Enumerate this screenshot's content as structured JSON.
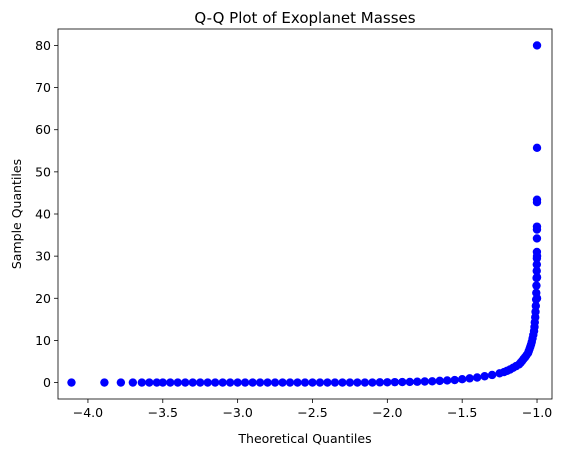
{
  "chart_data": {
    "type": "scatter",
    "title": "Q-Q Plot of Exoplanet Masses",
    "xlabel": "Theoretical Quantiles",
    "ylabel": "Sample Quantiles",
    "xlim": [
      -4.2,
      -0.9
    ],
    "ylim": [
      -3.9,
      83.9
    ],
    "x_ticks": [
      -4.0,
      -3.5,
      -3.0,
      -2.5,
      -2.0,
      -1.5,
      -1.0
    ],
    "x_tick_labels": [
      "−4.0",
      "−3.5",
      "−3.0",
      "−2.5",
      "−2.0",
      "−1.5",
      "−1.0"
    ],
    "y_ticks": [
      0,
      10,
      20,
      30,
      40,
      50,
      60,
      70,
      80
    ],
    "y_tick_labels": [
      "0",
      "10",
      "20",
      "30",
      "40",
      "50",
      "60",
      "70",
      "80"
    ],
    "grid": false,
    "legend": "none",
    "marker_color": "#0000ff",
    "series": [
      {
        "x": [
          -4.11,
          -3.89,
          -3.78,
          -3.7,
          -3.64,
          -3.59,
          -3.54,
          -3.5,
          -3.45,
          -3.4,
          -3.35,
          -3.3,
          -3.25,
          -3.2,
          -3.15,
          -3.1,
          -3.05,
          -3.0,
          -2.95,
          -2.9,
          -2.85,
          -2.8,
          -2.75,
          -2.7,
          -2.65,
          -2.6,
          -2.55,
          -2.5,
          -2.45,
          -2.4,
          -2.35,
          -2.3,
          -2.25,
          -2.2,
          -2.15,
          -2.1,
          -2.05,
          -2.0,
          -1.95,
          -1.9,
          -1.85,
          -1.8,
          -1.75,
          -1.7,
          -1.65,
          -1.6,
          -1.55,
          -1.5,
          -1.45,
          -1.4,
          -1.35,
          -1.3,
          -1.25,
          -1.22,
          -1.2,
          -1.18,
          -1.16,
          -1.14,
          -1.12,
          -1.11,
          -1.1,
          -1.09,
          -1.08,
          -1.07,
          -1.06,
          -1.055,
          -1.05,
          -1.045,
          -1.04,
          -1.035,
          -1.03,
          -1.025,
          -1.02,
          -1.017,
          -1.015,
          -1.012,
          -1.01,
          -1.008,
          -1.006,
          -1.005,
          -1.004,
          -1.003,
          -1.002,
          -1.0015,
          -1.001,
          -1.0008,
          -1.0006,
          -1.0005,
          -1.0004,
          -1.0003,
          -1.0002,
          -1.0001,
          -1.0,
          -1.0,
          -1.0,
          -1.0
        ],
        "y": [
          0.0,
          0.0,
          0.0,
          0.0,
          0.0,
          0.0,
          0.0,
          0.0,
          0.0,
          0.0,
          0.0,
          0.0,
          0.0,
          0.0,
          0.0,
          0.0,
          0.0,
          0.0,
          0.0,
          0.0,
          0.0,
          0.0,
          0.0,
          0.0,
          0.0,
          0.0,
          0.0,
          0.0,
          0.0,
          0.0,
          0.0,
          0.0,
          0.0,
          0.0,
          0.0,
          0.0,
          0.05,
          0.07,
          0.1,
          0.12,
          0.15,
          0.2,
          0.25,
          0.3,
          0.4,
          0.5,
          0.6,
          0.8,
          1.0,
          1.2,
          1.5,
          1.8,
          2.2,
          2.5,
          2.8,
          3.1,
          3.5,
          3.9,
          4.3,
          4.7,
          5.1,
          5.6,
          6.0,
          6.5,
          7.0,
          7.5,
          8.0,
          8.5,
          9.0,
          9.7,
          10.5,
          11.3,
          12.2,
          13.2,
          14.3,
          15.5,
          16.8,
          18.2,
          19.7,
          21.3,
          23.0,
          24.8,
          26.5,
          28.0,
          29.5,
          31.0,
          34.2,
          36.3,
          37.0,
          42.8,
          43.4,
          55.7,
          80.0,
          30.0,
          25.0,
          20.0
        ]
      }
    ]
  }
}
